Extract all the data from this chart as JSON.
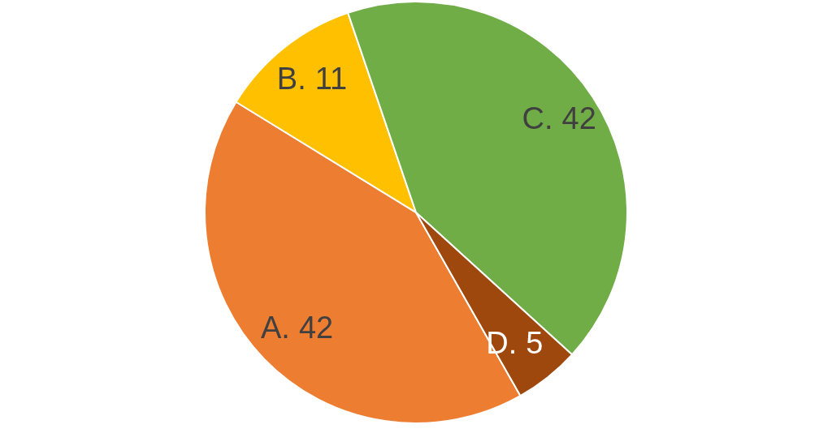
{
  "chart_data": {
    "type": "pie",
    "categories": [
      "A.",
      "B.",
      "C.",
      "D."
    ],
    "values": [
      42,
      11,
      42,
      5
    ],
    "data_labels": true,
    "colors": [
      "#ed7d31",
      "#ffc000",
      "#70ad47",
      "#9e480e"
    ]
  }
}
